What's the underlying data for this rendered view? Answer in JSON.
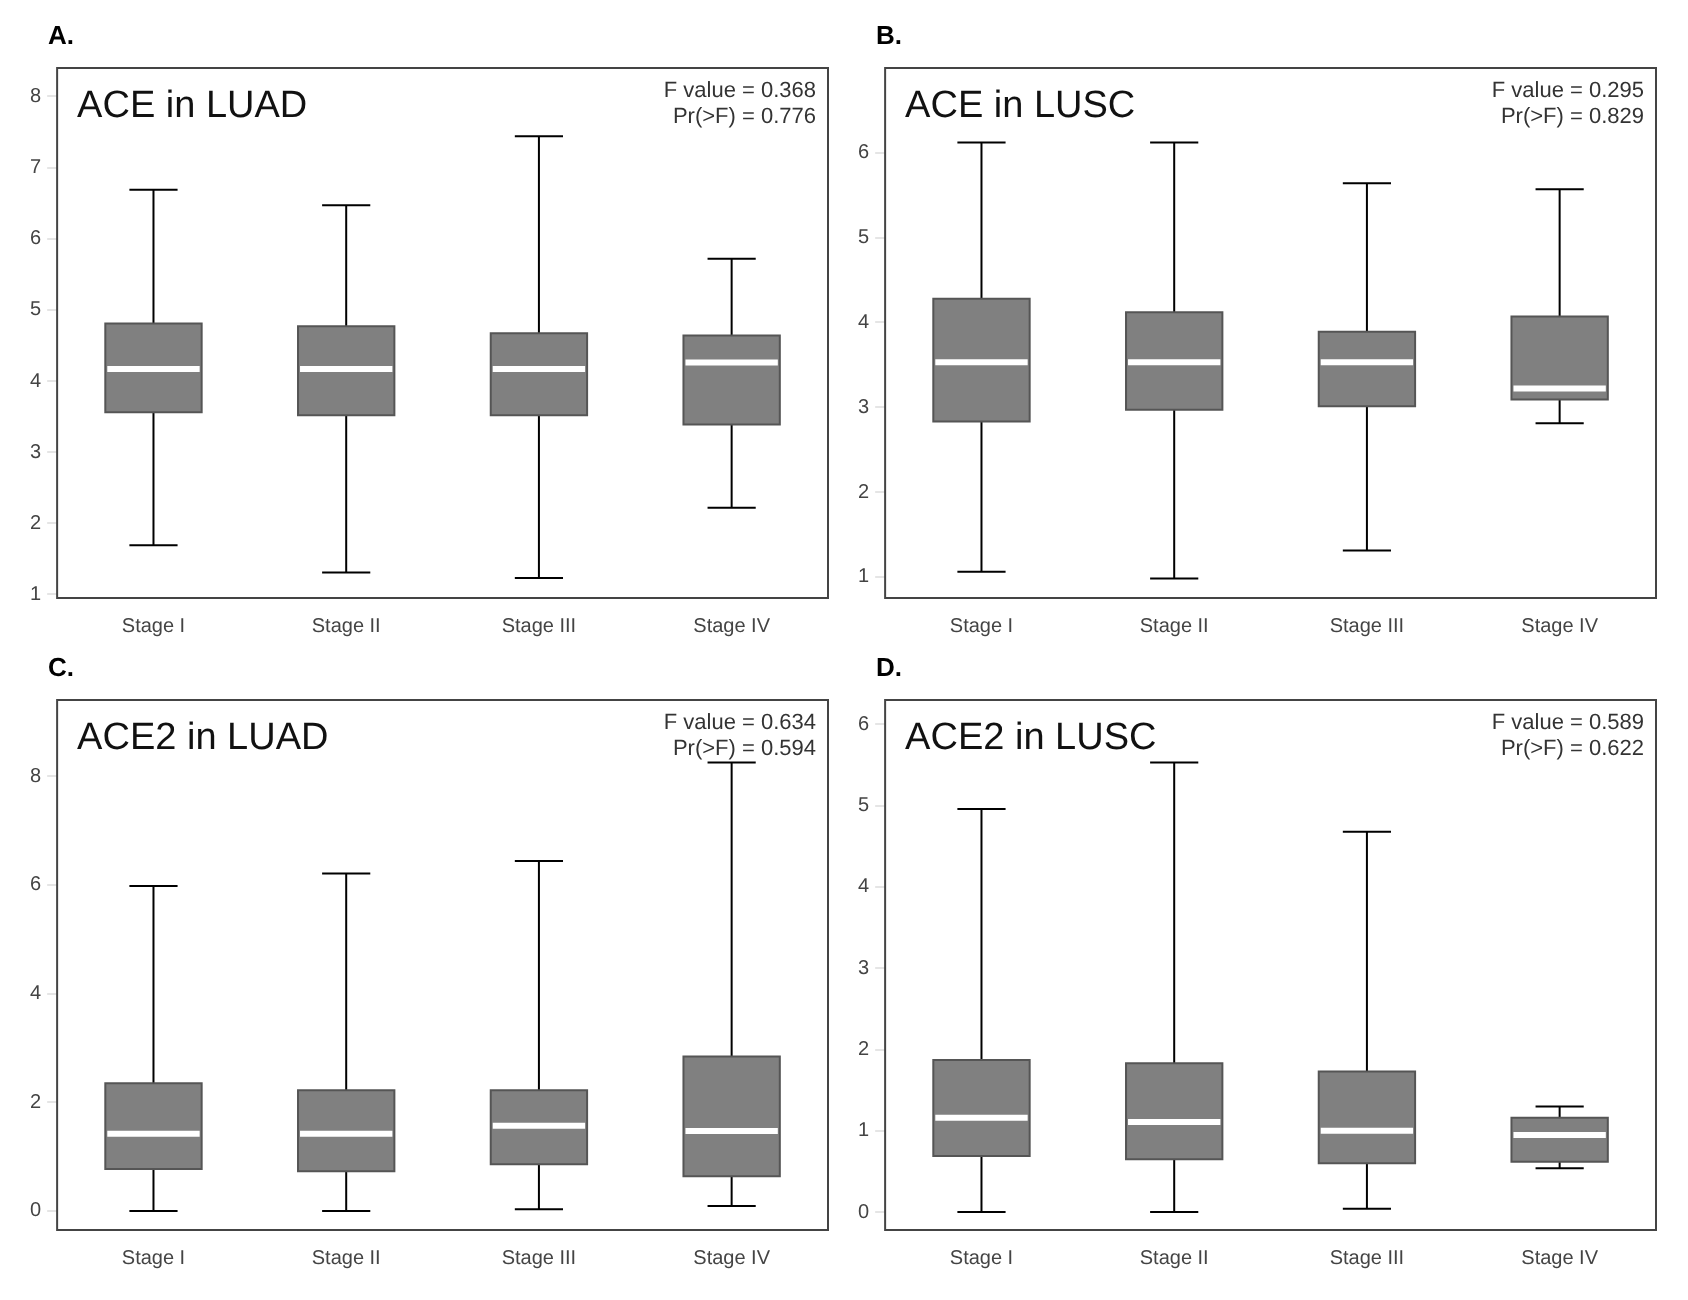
{
  "chart_data": [
    {
      "type": "box",
      "title": "ACE in LUAD",
      "annotations": [
        "A.",
        "F value = 0.368",
        "Pr(>F) = 0.776"
      ],
      "categories": [
        "Stage I",
        "Stage II",
        "Stage III",
        "Stage IV"
      ],
      "ylim": [
        0.95,
        8.4
      ],
      "yticks": [
        1,
        2,
        3,
        4,
        5,
        6,
        7,
        8
      ],
      "series": [
        {
          "color": "#808080",
          "boxes": [
            {
              "low": 1.69,
              "q1": 3.56,
              "median": 4.17,
              "q3": 4.81,
              "high": 6.69
            },
            {
              "low": 1.31,
              "q1": 3.52,
              "median": 4.17,
              "q3": 4.77,
              "high": 6.47
            },
            {
              "low": 1.23,
              "q1": 3.52,
              "median": 4.17,
              "q3": 4.67,
              "high": 7.44
            },
            {
              "low": 2.22,
              "q1": 3.39,
              "median": 4.26,
              "q3": 4.64,
              "high": 5.72
            }
          ]
        }
      ]
    },
    {
      "type": "box",
      "title": "ACE in LUSC",
      "annotations": [
        "B.",
        "F value = 0.295",
        "Pr(>F) = 0.829"
      ],
      "categories": [
        "Stage I",
        "Stage II",
        "Stage III",
        "Stage IV"
      ],
      "ylim": [
        0.75,
        7.0
      ],
      "yticks": [
        1,
        2,
        3,
        4,
        5,
        6
      ],
      "series": [
        {
          "color": "#808080",
          "boxes": [
            {
              "low": 1.06,
              "q1": 2.83,
              "median": 3.53,
              "q3": 4.28,
              "high": 6.12
            },
            {
              "low": 0.98,
              "q1": 2.97,
              "median": 3.53,
              "q3": 4.12,
              "high": 6.12
            },
            {
              "low": 1.31,
              "q1": 3.01,
              "median": 3.53,
              "q3": 3.89,
              "high": 5.64
            },
            {
              "low": 2.81,
              "q1": 3.09,
              "median": 3.22,
              "q3": 4.07,
              "high": 5.57
            }
          ]
        }
      ]
    },
    {
      "type": "box",
      "title": "ACE2 in LUAD",
      "annotations": [
        "C.",
        "F value = 0.634",
        "Pr(>F) = 0.594"
      ],
      "categories": [
        "Stage I",
        "Stage II",
        "Stage III",
        "Stage IV"
      ],
      "ylim": [
        -0.35,
        9.4
      ],
      "yticks": [
        0,
        2,
        4,
        6,
        8
      ],
      "series": [
        {
          "color": "#808080",
          "boxes": [
            {
              "low": 0,
              "q1": 0.77,
              "median": 1.42,
              "q3": 2.35,
              "high": 5.98
            },
            {
              "low": 0,
              "q1": 0.73,
              "median": 1.42,
              "q3": 2.22,
              "high": 6.21
            },
            {
              "low": 0.03,
              "q1": 0.86,
              "median": 1.57,
              "q3": 2.22,
              "high": 6.44
            },
            {
              "low": 0.09,
              "q1": 0.64,
              "median": 1.47,
              "q3": 2.84,
              "high": 8.25
            }
          ]
        }
      ]
    },
    {
      "type": "box",
      "title": "ACE2 in LUSC",
      "annotations": [
        "D.",
        "F value = 0.589",
        "Pr(>F) = 0.622"
      ],
      "categories": [
        "Stage I",
        "Stage II",
        "Stage III",
        "Stage IV"
      ],
      "ylim": [
        -0.22,
        6.3
      ],
      "yticks": [
        0,
        1,
        2,
        3,
        4,
        5,
        6
      ],
      "series": [
        {
          "color": "#808080",
          "boxes": [
            {
              "low": 0,
              "q1": 0.69,
              "median": 1.16,
              "q3": 1.87,
              "high": 4.96
            },
            {
              "low": 0,
              "q1": 0.65,
              "median": 1.11,
              "q3": 1.83,
              "high": 5.53
            },
            {
              "low": 0.04,
              "q1": 0.6,
              "median": 1.0,
              "q3": 1.73,
              "high": 4.68
            },
            {
              "low": 0.54,
              "q1": 0.62,
              "median": 0.95,
              "q3": 1.16,
              "high": 1.3
            }
          ]
        }
      ]
    }
  ]
}
